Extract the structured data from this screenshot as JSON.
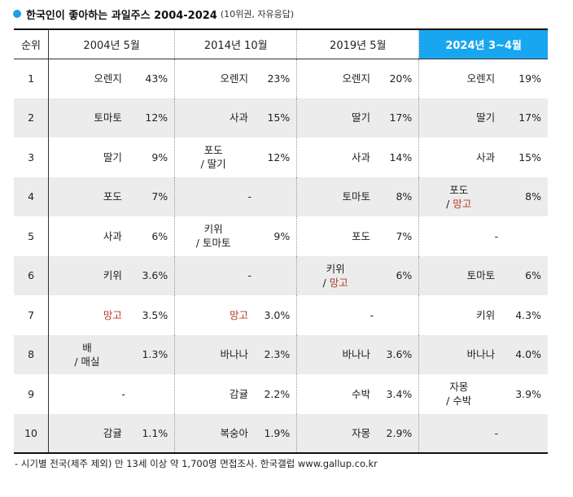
{
  "title": {
    "main": "한국인이 좋아하는 과일주스 2004-2024",
    "sub": "(10위권, 자유응답)"
  },
  "header": {
    "rank": "순위",
    "periods": [
      "2004년 5월",
      "2014년 10월",
      "2019년 5월",
      "2024년 3~4월"
    ]
  },
  "highlight_color": "#19a6f0",
  "mango_color": "#b23b2a",
  "rows": [
    {
      "rank": "1",
      "cells": [
        {
          "fruit": [
            "오렌지"
          ],
          "pct": "43%"
        },
        {
          "fruit": [
            "오렌지"
          ],
          "pct": "23%"
        },
        {
          "fruit": [
            "오렌지"
          ],
          "pct": "20%"
        },
        {
          "fruit": [
            "오렌지"
          ],
          "pct": "19%"
        }
      ]
    },
    {
      "rank": "2",
      "cells": [
        {
          "fruit": [
            "토마토"
          ],
          "pct": "12%"
        },
        {
          "fruit": [
            "사과"
          ],
          "pct": "15%"
        },
        {
          "fruit": [
            "딸기"
          ],
          "pct": "17%"
        },
        {
          "fruit": [
            "딸기"
          ],
          "pct": "17%"
        }
      ]
    },
    {
      "rank": "3",
      "cells": [
        {
          "fruit": [
            "딸기"
          ],
          "pct": "9%"
        },
        {
          "fruit": [
            "포도",
            "/ 딸기"
          ],
          "pct": "12%"
        },
        {
          "fruit": [
            "사과"
          ],
          "pct": "14%"
        },
        {
          "fruit": [
            "사과"
          ],
          "pct": "15%"
        }
      ]
    },
    {
      "rank": "4",
      "cells": [
        {
          "fruit": [
            "포도"
          ],
          "pct": "7%"
        },
        {
          "fruit": [
            "-"
          ],
          "pct": ""
        },
        {
          "fruit": [
            "토마토"
          ],
          "pct": "8%"
        },
        {
          "fruit": [
            "포도",
            "/ 망고"
          ],
          "pct": "8%"
        }
      ]
    },
    {
      "rank": "5",
      "cells": [
        {
          "fruit": [
            "사과"
          ],
          "pct": "6%"
        },
        {
          "fruit": [
            "키위",
            "/ 토마토"
          ],
          "pct": "9%"
        },
        {
          "fruit": [
            "포도"
          ],
          "pct": "7%"
        },
        {
          "fruit": [
            "-"
          ],
          "pct": ""
        }
      ]
    },
    {
      "rank": "6",
      "cells": [
        {
          "fruit": [
            "키위"
          ],
          "pct": "3.6%"
        },
        {
          "fruit": [
            "-"
          ],
          "pct": ""
        },
        {
          "fruit": [
            "키위",
            "/ 망고"
          ],
          "pct": "6%"
        },
        {
          "fruit": [
            "토마토"
          ],
          "pct": "6%"
        }
      ]
    },
    {
      "rank": "7",
      "cells": [
        {
          "fruit": [
            "망고"
          ],
          "pct": "3.5%"
        },
        {
          "fruit": [
            "망고"
          ],
          "pct": "3.0%"
        },
        {
          "fruit": [
            "-"
          ],
          "pct": ""
        },
        {
          "fruit": [
            "키위"
          ],
          "pct": "4.3%"
        }
      ]
    },
    {
      "rank": "8",
      "cells": [
        {
          "fruit": [
            "배",
            "/ 매실"
          ],
          "pct": "1.3%"
        },
        {
          "fruit": [
            "바나나"
          ],
          "pct": "2.3%"
        },
        {
          "fruit": [
            "바나나"
          ],
          "pct": "3.6%"
        },
        {
          "fruit": [
            "바나나"
          ],
          "pct": "4.0%"
        }
      ]
    },
    {
      "rank": "9",
      "cells": [
        {
          "fruit": [
            "-"
          ],
          "pct": ""
        },
        {
          "fruit": [
            "감귤"
          ],
          "pct": "2.2%"
        },
        {
          "fruit": [
            "수박"
          ],
          "pct": "3.4%"
        },
        {
          "fruit": [
            "자몽",
            "/ 수박"
          ],
          "pct": "3.9%"
        }
      ]
    },
    {
      "rank": "10",
      "cells": [
        {
          "fruit": [
            "감귤"
          ],
          "pct": "1.1%"
        },
        {
          "fruit": [
            "복숭아"
          ],
          "pct": "1.9%"
        },
        {
          "fruit": [
            "자몽"
          ],
          "pct": "2.9%"
        },
        {
          "fruit": [
            "-"
          ],
          "pct": ""
        }
      ]
    }
  ],
  "footnote": "- 시기별 전국(제주 제외) 만 13세 이상 약 1,700명 면접조사. 한국갤럽 www.gallup.co.kr"
}
